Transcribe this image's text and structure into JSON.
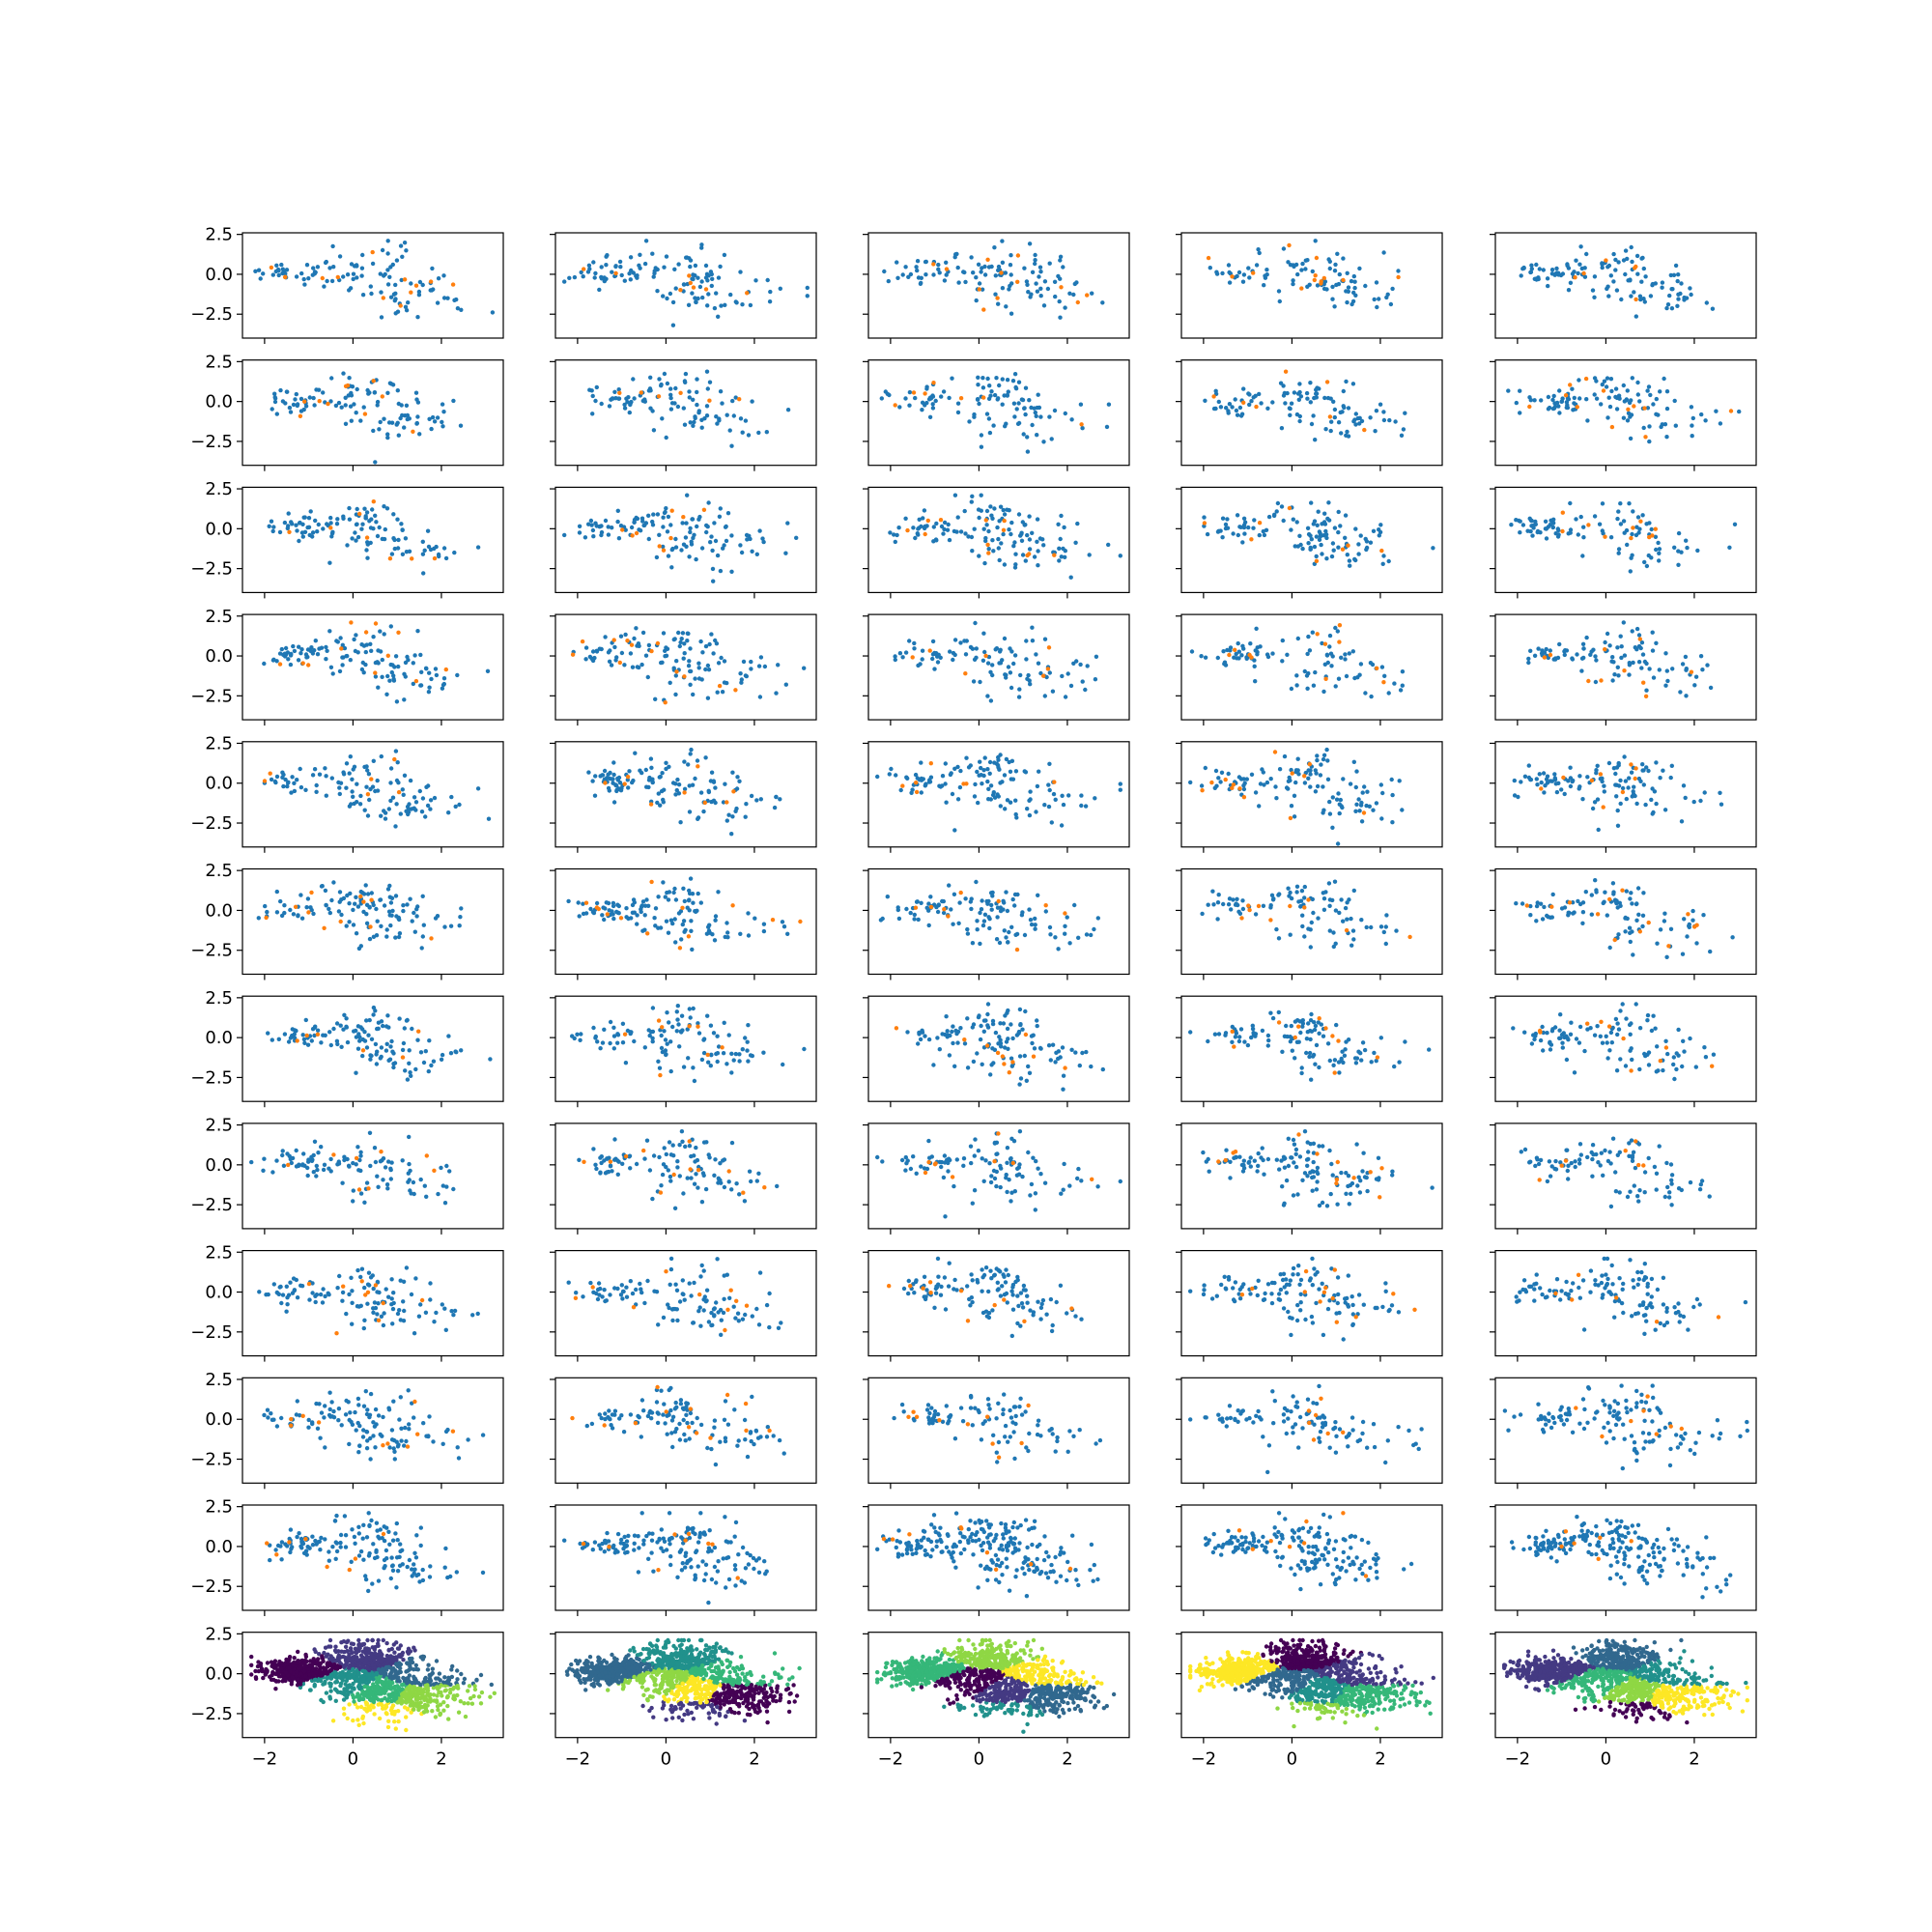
{
  "chart_data": {
    "type": "scatter",
    "layout": {
      "rows": 12,
      "cols": 5,
      "sharex": true,
      "sharey": true
    },
    "xlim": [
      -2.5,
      3.4
    ],
    "ylim": [
      -4.0,
      2.6
    ],
    "xticks": [
      -2,
      0,
      2
    ],
    "xtick_labels": [
      "−2",
      "0",
      "2"
    ],
    "yticks": [
      2.5,
      0.0,
      -2.5
    ],
    "ytick_labels": [
      "2.5",
      "0.0",
      "−2.5"
    ],
    "grid": false,
    "legend": "none",
    "colors": {
      "primary_points": "#1f77b4",
      "highlight_points": "#ff7f0e",
      "frame": "#000000",
      "background": "#ffffff",
      "cluster_palette": [
        "#440154",
        "#443a83",
        "#31688e",
        "#21918c",
        "#35b779",
        "#8fd744",
        "#fde725"
      ]
    },
    "point_cloud_shape": "elongated diagonal cloud roughly spanning x from -2 to 3 and y from -3.5 to 2, denser on the left upper side",
    "rows_1_to_11": "blue scatter points (about 100-200 per panel) with a few orange highlight points",
    "row_12": "clustered scatter colored by cluster label with 7 viridis colors",
    "seed": 20240517
  }
}
